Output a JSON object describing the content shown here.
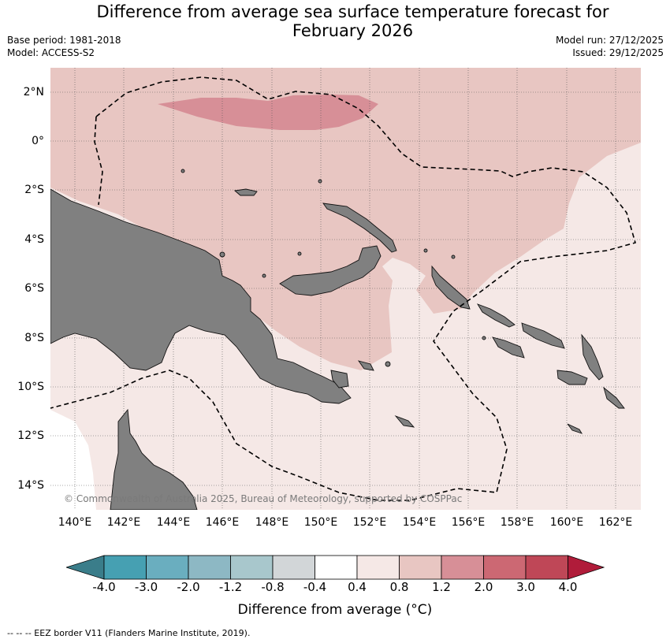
{
  "header": {
    "title_line1": "Difference from average sea surface temperature forecast for",
    "title_line2": "February 2026",
    "base_period": "Base period: 1981-2018",
    "model": "Model: ACCESS-S2",
    "model_run": "Model run: 27/12/2025",
    "issued": "Issued: 29/12/2025"
  },
  "map": {
    "lat_labels": [
      "2°N",
      "0°",
      "2°S",
      "4°S",
      "6°S",
      "8°S",
      "10°S",
      "12°S",
      "14°S"
    ],
    "lon_labels": [
      "140°E",
      "142°E",
      "144°E",
      "146°E",
      "148°E",
      "150°E",
      "152°E",
      "154°E",
      "156°E",
      "158°E",
      "160°E",
      "162°E"
    ],
    "copyright": "© Commonwealth of Australia 2025, Bureau of Meteorology, supported by COSPPac",
    "colors": {
      "land": "#808080",
      "anomaly_0_4_to_0_8": "#f5e8e6",
      "anomaly_0_8_to_1_2": "#e8c6c2",
      "anomaly_1_2_to_2_0": "#d78f97"
    }
  },
  "colorbar": {
    "ticks": [
      "-4.0",
      "-3.0",
      "-2.0",
      "-1.2",
      "-0.8",
      "-0.4",
      "0.4",
      "0.8",
      "1.2",
      "2.0",
      "3.0",
      "4.0"
    ],
    "colors": [
      "#3a7d8a",
      "#46a0b2",
      "#6aaebf",
      "#8db8c4",
      "#a8c7cc",
      "#d2d6d8",
      "#ffffff",
      "#f5e8e6",
      "#e8c6c2",
      "#d78f97",
      "#cc6873",
      "#bf4757",
      "#b01c3a"
    ],
    "label": "Difference from average (°C)"
  },
  "footer": {
    "legend": "-- -- -- EEZ border V11 (Flanders Marine Institute, 2019)."
  }
}
